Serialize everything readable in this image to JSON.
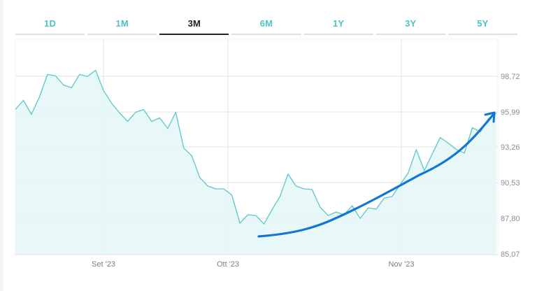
{
  "tabs": [
    {
      "label": "1D",
      "active": false
    },
    {
      "label": "1M",
      "active": false
    },
    {
      "label": "3M",
      "active": true
    },
    {
      "label": "6M",
      "active": false
    },
    {
      "label": "1Y",
      "active": false
    },
    {
      "label": "3Y",
      "active": false
    },
    {
      "label": "5Y",
      "active": false
    }
  ],
  "colors": {
    "line": "#5cc6c9",
    "fill": "#e6f7f8",
    "trend_arrow": "#1376d6",
    "active_tab": "#222222",
    "inactive_tab": "#4ec2c6",
    "grid": "#dfe3e5"
  },
  "chart_data": {
    "type": "area",
    "title": "",
    "xlabel": "",
    "ylabel": "",
    "x_tick_labels": [
      "Set '23",
      "Ott '23",
      "Nov '23"
    ],
    "y_tick_labels": [
      "98,72",
      "95,99",
      "93,26",
      "90,53",
      "87,80",
      "85,07"
    ],
    "y_ticks": [
      98.72,
      95.99,
      93.26,
      90.53,
      87.8,
      85.07
    ],
    "ylim": [
      85.07,
      101.45
    ],
    "grid": true,
    "legend": null,
    "annotations": [
      "Hand-drawn blue upward trend arrow from mid-October to late November"
    ],
    "series": [
      {
        "name": "price",
        "values": [
          96.17,
          96.87,
          95.79,
          97.13,
          98.86,
          98.75,
          98.05,
          97.84,
          98.86,
          98.7,
          99.18,
          97.62,
          96.65,
          95.9,
          95.25,
          95.95,
          96.17,
          95.25,
          95.52,
          94.71,
          95.95,
          93.2,
          92.61,
          90.94,
          90.29,
          90.07,
          90.07,
          89.59,
          87.43,
          88.08,
          88.02,
          87.37,
          88.45,
          89.48,
          91.2,
          90.29,
          90.07,
          90.02,
          88.67,
          88.02,
          88.29,
          88.08,
          88.78,
          87.8,
          88.61,
          88.51,
          89.37,
          89.48,
          90.4,
          91.31,
          93.09,
          91.47,
          92.77,
          94.01,
          93.58,
          93.09,
          92.82,
          94.77,
          94.44,
          95.47,
          95.9
        ]
      }
    ],
    "trend_arrow": {
      "from_value": 86.6,
      "to_value": 96.0,
      "direction": "up"
    }
  }
}
